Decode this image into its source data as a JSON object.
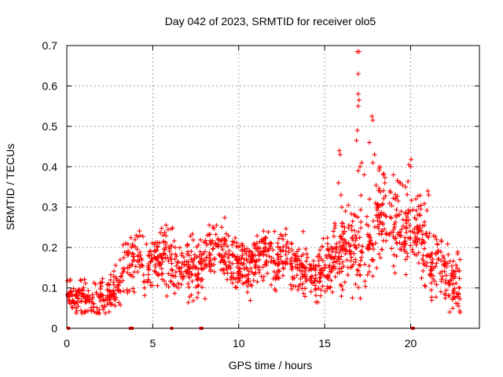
{
  "chart_data": {
    "type": "scatter",
    "title": "Day 042 of 2023, SRMTID for receiver olo5",
    "xlabel": "GPS time / hours",
    "ylabel": "SRMTID / TECUs",
    "xlim": [
      0,
      24.0
    ],
    "ylim": [
      0,
      0.7
    ],
    "xticks": [
      0,
      5,
      10,
      15,
      20
    ],
    "xtick_labels": [
      "0",
      "5",
      "10",
      "15",
      "20"
    ],
    "yticks": [
      0,
      0.1,
      0.2,
      0.3,
      0.4,
      0.5,
      0.6,
      0.7
    ],
    "ytick_labels": [
      "0",
      "0.1",
      "0.2",
      "0.3",
      "0.4",
      "0.5",
      "0.6",
      "0.7"
    ],
    "grid": true,
    "marker": "+",
    "color": "#ff0000",
    "series": [
      {
        "name": "SRMTID",
        "trend": [
          [
            0.0,
            0.08
          ],
          [
            0.5,
            0.08
          ],
          [
            1.0,
            0.075
          ],
          [
            1.5,
            0.065
          ],
          [
            2.0,
            0.07
          ],
          [
            2.5,
            0.08
          ],
          [
            3.0,
            0.1
          ],
          [
            3.5,
            0.16
          ],
          [
            4.0,
            0.18
          ],
          [
            4.5,
            0.14
          ],
          [
            5.0,
            0.15
          ],
          [
            5.5,
            0.19
          ],
          [
            6.0,
            0.17
          ],
          [
            6.5,
            0.14
          ],
          [
            7.0,
            0.16
          ],
          [
            7.5,
            0.15
          ],
          [
            8.0,
            0.17
          ],
          [
            8.5,
            0.18
          ],
          [
            9.0,
            0.19
          ],
          [
            9.5,
            0.17
          ],
          [
            10.0,
            0.16
          ],
          [
            10.5,
            0.15
          ],
          [
            11.0,
            0.17
          ],
          [
            11.5,
            0.18
          ],
          [
            12.0,
            0.16
          ],
          [
            12.5,
            0.18
          ],
          [
            13.0,
            0.17
          ],
          [
            13.5,
            0.15
          ],
          [
            14.0,
            0.14
          ],
          [
            14.5,
            0.13
          ],
          [
            15.0,
            0.15
          ],
          [
            15.5,
            0.17
          ],
          [
            16.0,
            0.2
          ],
          [
            16.5,
            0.21
          ],
          [
            17.0,
            0.2
          ],
          [
            17.5,
            0.2
          ],
          [
            18.0,
            0.26
          ],
          [
            18.5,
            0.28
          ],
          [
            19.0,
            0.26
          ],
          [
            19.5,
            0.24
          ],
          [
            20.0,
            0.25
          ],
          [
            20.5,
            0.23
          ],
          [
            21.0,
            0.18
          ],
          [
            21.5,
            0.16
          ],
          [
            22.0,
            0.14
          ],
          [
            22.5,
            0.12
          ],
          [
            22.9,
            0.1
          ]
        ],
        "spread": [
          [
            0.0,
            0.035
          ],
          [
            3.0,
            0.05
          ],
          [
            4.0,
            0.06
          ],
          [
            8.0,
            0.06
          ],
          [
            15.0,
            0.05
          ],
          [
            16.0,
            0.07
          ],
          [
            17.5,
            0.09
          ],
          [
            19.0,
            0.09
          ],
          [
            20.5,
            0.08
          ],
          [
            22.9,
            0.06
          ]
        ],
        "point_count": 1500,
        "outliers": [
          [
            15.85,
            0.44
          ],
          [
            15.9,
            0.43
          ],
          [
            15.8,
            0.36
          ],
          [
            15.95,
            0.33
          ],
          [
            16.0,
            0.3
          ],
          [
            16.9,
            0.685
          ],
          [
            17.0,
            0.685
          ],
          [
            16.95,
            0.63
          ],
          [
            16.95,
            0.58
          ],
          [
            17.0,
            0.565
          ],
          [
            16.95,
            0.55
          ],
          [
            16.9,
            0.49
          ],
          [
            16.85,
            0.465
          ],
          [
            16.95,
            0.39
          ],
          [
            17.05,
            0.4
          ],
          [
            17.15,
            0.41
          ],
          [
            17.3,
            0.38
          ],
          [
            17.6,
            0.46
          ],
          [
            17.8,
            0.41
          ],
          [
            17.9,
            0.43
          ],
          [
            17.75,
            0.525
          ],
          [
            17.8,
            0.515
          ],
          [
            18.2,
            0.4
          ],
          [
            18.4,
            0.38
          ],
          [
            18.5,
            0.36
          ],
          [
            19.0,
            0.38
          ],
          [
            19.4,
            0.36
          ],
          [
            19.9,
            0.405
          ],
          [
            20.0,
            0.4
          ],
          [
            19.7,
            0.35
          ],
          [
            21.0,
            0.34
          ],
          [
            21.05,
            0.33
          ],
          [
            20.3,
            0.32
          ],
          [
            18.8,
            0.34
          ]
        ],
        "zero_markers": [
          0.1,
          3.7,
          3.8,
          6.1,
          7.8,
          7.85,
          20.1,
          20.15
        ]
      }
    ]
  }
}
